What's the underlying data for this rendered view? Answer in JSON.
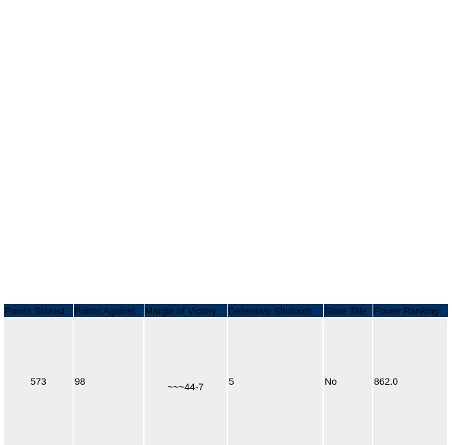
{
  "table": {
    "header": [
      "Points Scored",
      "Points Against",
      "Margin of Victory",
      "Defensive Shutouts",
      "State Title",
      "Power Ranking"
    ],
    "rows": [
      [
        "573",
        "98",
        "~~~44-7",
        "5",
        "No",
        "862.0"
      ]
    ]
  }
}
